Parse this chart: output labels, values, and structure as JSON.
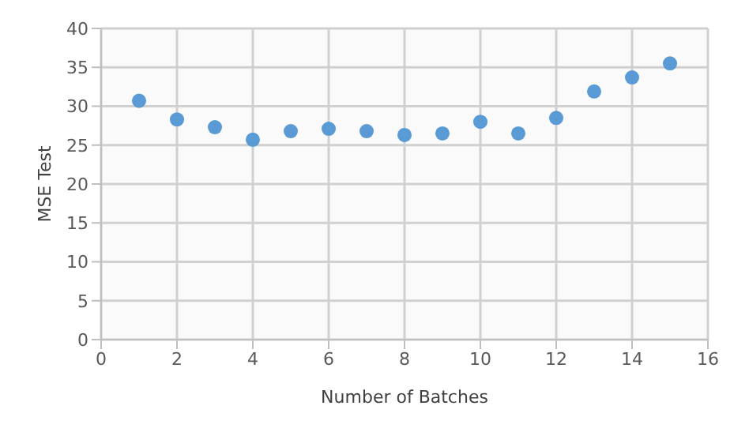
{
  "chart_data": {
    "type": "scatter",
    "xlabel": "Number  of Batches",
    "ylabel": "MSE Test",
    "x": [
      1,
      2,
      3,
      4,
      5,
      6,
      7,
      8,
      9,
      10,
      11,
      12,
      13,
      14,
      15
    ],
    "series": [
      {
        "color": "#5b9bd5",
        "values": [
          30.7,
          28.3,
          27.3,
          25.7,
          26.8,
          27.1,
          26.8,
          26.3,
          26.5,
          28.0,
          26.5,
          28.5,
          31.9,
          33.7,
          35.5
        ]
      }
    ],
    "xlim": [
      0,
      16
    ],
    "xticks": [
      0,
      2,
      4,
      6,
      8,
      10,
      12,
      14,
      16
    ],
    "ylim": [
      0,
      40
    ],
    "yticks": [
      0,
      5,
      10,
      15,
      20,
      25,
      30,
      35,
      40
    ],
    "grid": true,
    "marker": "circle",
    "legend": false
  }
}
